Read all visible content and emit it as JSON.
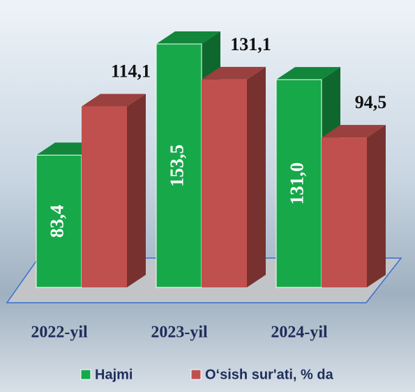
{
  "chart_data": {
    "type": "bar3d",
    "categories": [
      "2022-yil",
      "2023-yil",
      "2024-yil"
    ],
    "series": [
      {
        "name": "Hajmi",
        "color": "#17a84a",
        "values": [
          83.4,
          153.5,
          131.0
        ],
        "value_labels": [
          "83,4",
          "153,5",
          "131,0"
        ]
      },
      {
        "name": "O‘sish sur'ati, % da",
        "color": "#c0504d",
        "values": [
          114.1,
          131.1,
          94.5
        ],
        "value_labels": [
          "114,1",
          "131,1",
          "94,5"
        ]
      }
    ]
  }
}
